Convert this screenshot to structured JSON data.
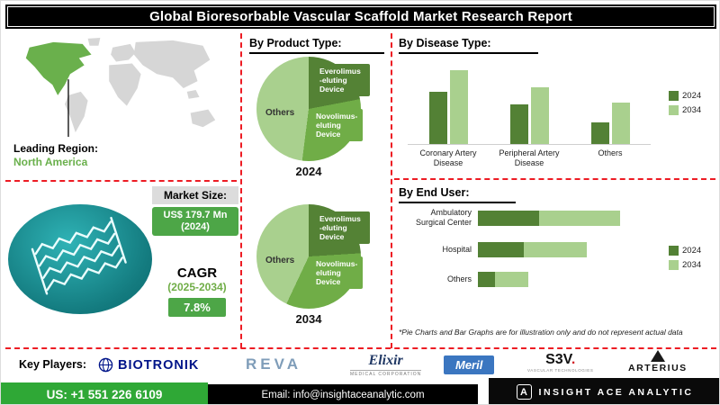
{
  "title": "Global Bioresorbable Vascular Scaffold Market Research Report",
  "left_panel": {
    "leading_region_label": "Leading Region:",
    "leading_region_value": "North America",
    "market_size_label": "Market Size:",
    "market_size_value": "US$ 179.7 Mn\n(2024)",
    "cagr_label": "CAGR",
    "cagr_period": "(2025-2034)",
    "cagr_value": "7.8%"
  },
  "sections": {
    "product_type_heading": "By Product Type:",
    "disease_type_heading": "By Disease Type:",
    "end_user_heading": "By End User:",
    "note": "*Pie Charts and Bar Graphs are for illustration only and do not represent actual data"
  },
  "chart_data": [
    {
      "type": "pie",
      "title": "By Product Type 2024",
      "year_label": "2024",
      "slices": [
        {
          "label": "Everolimus\n-eluting\nDevice",
          "value": 22,
          "color": "#548235"
        },
        {
          "label": "Novolimus-\neluting\nDevice",
          "value": 30,
          "color": "#70ad47"
        },
        {
          "label": "Others",
          "value": 48,
          "color": "#a9d08e"
        }
      ]
    },
    {
      "type": "pie",
      "title": "By Product Type 2034",
      "year_label": "2034",
      "slices": [
        {
          "label": "Everolimus\n-eluting\nDevice",
          "value": 24,
          "color": "#548235"
        },
        {
          "label": "Novolimus-\neluting\nDevice",
          "value": 33,
          "color": "#70ad47"
        },
        {
          "label": "Others",
          "value": 43,
          "color": "#a9d08e"
        }
      ]
    },
    {
      "type": "bar",
      "title": "By Disease Type",
      "categories": [
        "Coronary Artery\nDisease",
        "Peripheral Artery\nDisease",
        "Others"
      ],
      "series": [
        {
          "name": "2024",
          "color": "#538135",
          "values": [
            48,
            36,
            20
          ]
        },
        {
          "name": "2034",
          "color": "#a9d08e",
          "values": [
            68,
            52,
            38
          ]
        }
      ],
      "ylim": [
        0,
        80
      ],
      "legend_position": "right",
      "grid": false
    },
    {
      "type": "bar",
      "orientation": "horizontal",
      "stacked": true,
      "title": "By End User",
      "categories": [
        "Ambulatory\nSurgical Center",
        "Hospital",
        "Others"
      ],
      "series": [
        {
          "name": "2024",
          "color": "#538135",
          "values": [
            40,
            30,
            11
          ]
        },
        {
          "name": "2034",
          "color": "#a9d08e",
          "values": [
            53,
            41,
            22
          ]
        }
      ],
      "xlim": [
        0,
        100
      ],
      "legend_position": "right",
      "grid": false
    }
  ],
  "key_players": {
    "label": "Key Players:",
    "biotronik": "BIOTRONIK",
    "reva": "REVA",
    "elixir": "Elixir",
    "elixir_tag": "MEDICAL CORPORATION",
    "meril": "Meril",
    "s3v": "S3V",
    "s3v_dot": ".",
    "s3v_tag": "VASCULAR TECHNOLOGIES",
    "arterius": "ARTERIUS"
  },
  "footer": {
    "phone": "US: +1 551 226 6109",
    "email": "Email: info@insightaceanalytic.com",
    "brand_mark": "A",
    "brand": "INSIGHT ACE ANALYTIC"
  },
  "colors": {
    "accent_red": "#ed1c24",
    "green_dark": "#538135",
    "green_mid": "#70ad47",
    "green_light": "#a9d08e",
    "badge_green": "#4da647",
    "footer_green": "#2fa836",
    "teal_image": "#137a7e"
  }
}
